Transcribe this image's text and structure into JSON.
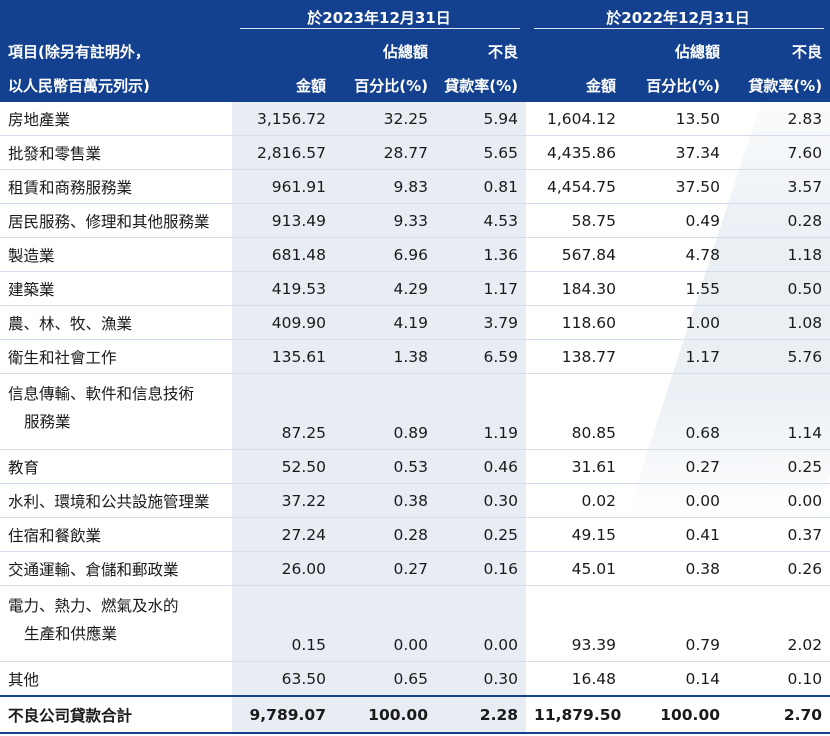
{
  "header": {
    "label_line1": "項目(除另有註明外，",
    "label_line2": "以人民幣百萬元列示)",
    "period_2023": "於2023年12月31日",
    "period_2022": "於2022年12月31日",
    "amount": "金額",
    "pct_line1": "佔總額",
    "pct_line2": "百分比(%)",
    "npl_line1": "不良",
    "npl_line2": "貸款率(%)"
  },
  "rows": [
    {
      "label": "房地產業",
      "a2023": "3,156.72",
      "p2023": "32.25",
      "r2023": "5.94",
      "a2022": "1,604.12",
      "p2022": "13.50",
      "r2022": "2.83"
    },
    {
      "label": "批發和零售業",
      "a2023": "2,816.57",
      "p2023": "28.77",
      "r2023": "5.65",
      "a2022": "4,435.86",
      "p2022": "37.34",
      "r2022": "7.60"
    },
    {
      "label": "租賃和商務服務業",
      "a2023": "961.91",
      "p2023": "9.83",
      "r2023": "0.81",
      "a2022": "4,454.75",
      "p2022": "37.50",
      "r2022": "3.57"
    },
    {
      "label": "居民服務、修理和其他服務業",
      "a2023": "913.49",
      "p2023": "9.33",
      "r2023": "4.53",
      "a2022": "58.75",
      "p2022": "0.49",
      "r2022": "0.28"
    },
    {
      "label": "製造業",
      "a2023": "681.48",
      "p2023": "6.96",
      "r2023": "1.36",
      "a2022": "567.84",
      "p2022": "4.78",
      "r2022": "1.18"
    },
    {
      "label": "建築業",
      "a2023": "419.53",
      "p2023": "4.29",
      "r2023": "1.17",
      "a2022": "184.30",
      "p2022": "1.55",
      "r2022": "0.50"
    },
    {
      "label": "農、林、牧、漁業",
      "a2023": "409.90",
      "p2023": "4.19",
      "r2023": "3.79",
      "a2022": "118.60",
      "p2022": "1.00",
      "r2022": "1.08"
    },
    {
      "label": "衛生和社會工作",
      "a2023": "135.61",
      "p2023": "1.38",
      "r2023": "6.59",
      "a2022": "138.77",
      "p2022": "1.17",
      "r2022": "5.76"
    },
    {
      "label": "信息傳輸、軟件和信息技術",
      "label2": "服務業",
      "a2023": "87.25",
      "p2023": "0.89",
      "r2023": "1.19",
      "a2022": "80.85",
      "p2022": "0.68",
      "r2022": "1.14"
    },
    {
      "label": "教育",
      "a2023": "52.50",
      "p2023": "0.53",
      "r2023": "0.46",
      "a2022": "31.61",
      "p2022": "0.27",
      "r2022": "0.25"
    },
    {
      "label": "水利、環境和公共設施管理業",
      "a2023": "37.22",
      "p2023": "0.38",
      "r2023": "0.30",
      "a2022": "0.02",
      "p2022": "0.00",
      "r2022": "0.00"
    },
    {
      "label": "住宿和餐飲業",
      "a2023": "27.24",
      "p2023": "0.28",
      "r2023": "0.25",
      "a2022": "49.15",
      "p2022": "0.41",
      "r2022": "0.37"
    },
    {
      "label": "交通運輸、倉儲和郵政業",
      "a2023": "26.00",
      "p2023": "0.27",
      "r2023": "0.16",
      "a2022": "45.01",
      "p2022": "0.38",
      "r2022": "0.26"
    },
    {
      "label": "電力、熱力、燃氣及水的",
      "label2": "生產和供應業",
      "a2023": "0.15",
      "p2023": "0.00",
      "r2023": "0.00",
      "a2022": "93.39",
      "p2022": "0.79",
      "r2022": "2.02"
    },
    {
      "label": "其他",
      "a2023": "63.50",
      "p2023": "0.65",
      "r2023": "0.30",
      "a2022": "16.48",
      "p2022": "0.14",
      "r2022": "0.10"
    }
  ],
  "total": {
    "label": "不良公司貸款合計",
    "a2023": "9,789.07",
    "p2023": "100.00",
    "r2023": "2.28",
    "a2022": "11,879.50",
    "p2022": "100.00",
    "r2022": "2.70"
  },
  "colors": {
    "header_bg": "#14418f",
    "shade": "#e8edf4"
  }
}
